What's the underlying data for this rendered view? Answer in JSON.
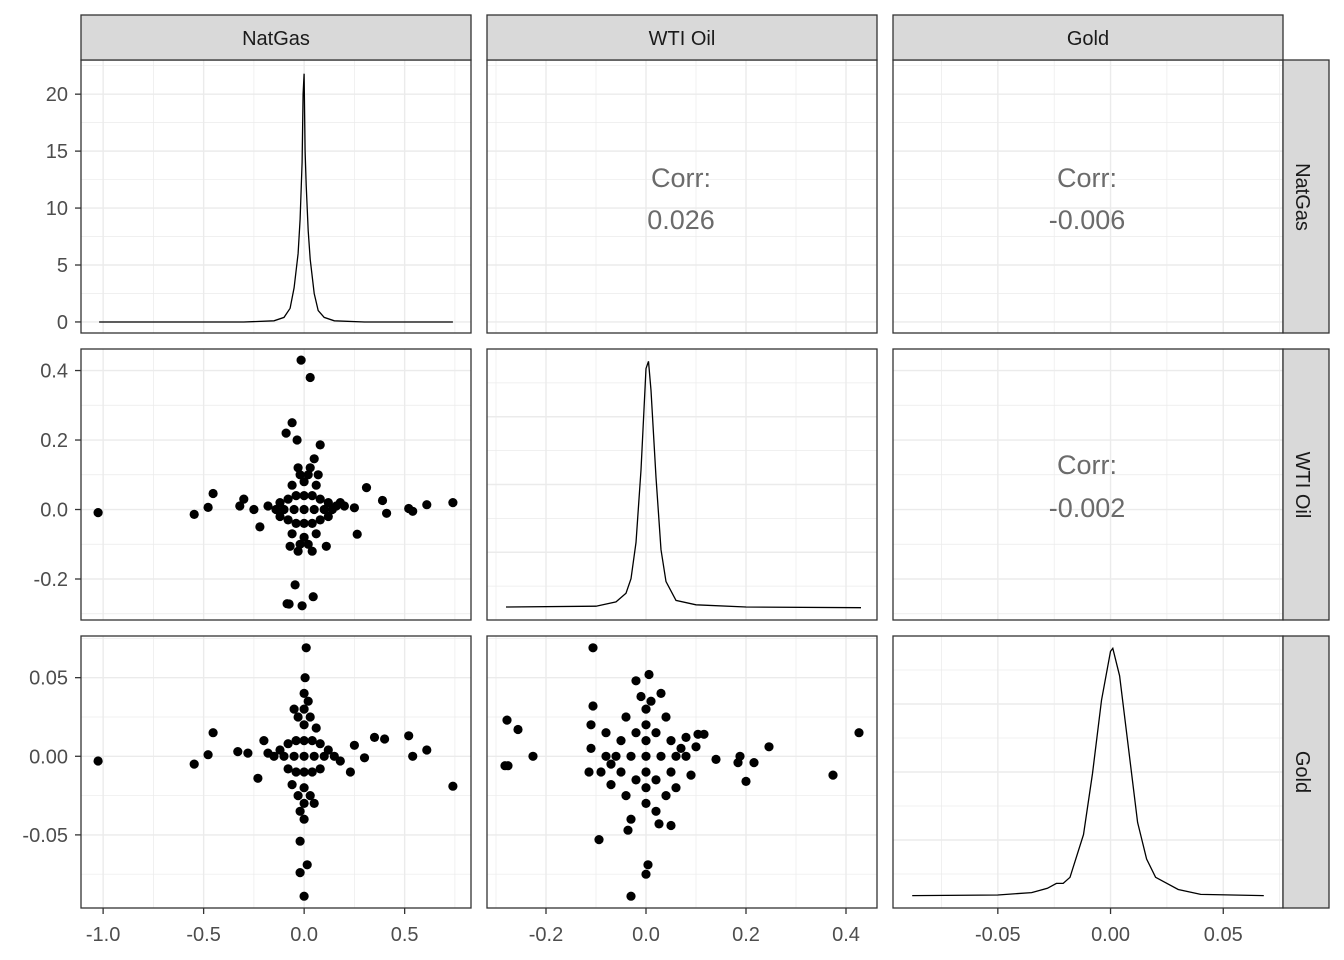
{
  "chart_data": {
    "type": "scatter-matrix",
    "variables": [
      "NatGas",
      "WTI Oil",
      "Gold"
    ],
    "axes": {
      "NatGas": {
        "range": [
          -1.11,
          0.83
        ],
        "ticks": [
          -1.0,
          -0.5,
          0.0,
          0.5
        ],
        "tick_labels": [
          "-1.0",
          "-0.5",
          "0.0",
          "0.5"
        ]
      },
      "WTI Oil": {
        "range": [
          -0.318,
          0.462
        ],
        "ticks": [
          -0.2,
          0.0,
          0.2,
          0.4
        ],
        "tick_labels": [
          "-0.2",
          "0.0",
          "0.2",
          "0.4"
        ]
      },
      "Gold": {
        "range": [
          -0.0965,
          0.0765
        ],
        "ticks": [
          -0.05,
          0.0,
          0.05
        ],
        "tick_labels": [
          "-0.05",
          "0.00",
          "0.05"
        ]
      }
    },
    "row1_density_axis": {
      "range": [
        -0.97,
        23.0
      ],
      "ticks": [
        0,
        5,
        10,
        15,
        20
      ],
      "tick_labels": [
        "0",
        "5",
        "10",
        "15",
        "20"
      ]
    },
    "row_axis_labels": {
      "WTI Oil": [
        "0.4",
        "0.2",
        "0.0",
        "-0.2"
      ],
      "Gold": [
        "0.05",
        "0.00",
        "-0.05"
      ]
    },
    "correlations": [
      {
        "row": "NatGas",
        "col": "WTI Oil",
        "label": "Corr:",
        "value": "0.026"
      },
      {
        "row": "NatGas",
        "col": "Gold",
        "label": "Corr:",
        "value": "-0.006"
      },
      {
        "row": "WTI Oil",
        "col": "Gold",
        "label": "Corr:",
        "value": "-0.002"
      }
    ],
    "densities": {
      "NatGas": [
        [
          -1.02,
          0
        ],
        [
          -0.3,
          0
        ],
        [
          -0.15,
          0.1
        ],
        [
          -0.1,
          0.4
        ],
        [
          -0.07,
          1.2
        ],
        [
          -0.05,
          3
        ],
        [
          -0.03,
          6
        ],
        [
          -0.02,
          9
        ],
        [
          -0.01,
          14
        ],
        [
          -0.005,
          20
        ],
        [
          0,
          21.8
        ],
        [
          0.005,
          15
        ],
        [
          0.01,
          12
        ],
        [
          0.02,
          8
        ],
        [
          0.03,
          5.5
        ],
        [
          0.05,
          2.5
        ],
        [
          0.07,
          1
        ],
        [
          0.1,
          0.4
        ],
        [
          0.15,
          0.1
        ],
        [
          0.3,
          0
        ],
        [
          0.74,
          0
        ]
      ],
      "WTI Oil": [
        [
          -0.28,
          0.05
        ],
        [
          -0.1,
          0.1
        ],
        [
          -0.06,
          0.4
        ],
        [
          -0.04,
          1
        ],
        [
          -0.03,
          2
        ],
        [
          -0.02,
          4.5
        ],
        [
          -0.01,
          9.5
        ],
        [
          0,
          16.5
        ],
        [
          0.005,
          17
        ],
        [
          0.01,
          15
        ],
        [
          0.02,
          9
        ],
        [
          0.03,
          4
        ],
        [
          0.04,
          1.8
        ],
        [
          0.06,
          0.5
        ],
        [
          0.1,
          0.2
        ],
        [
          0.2,
          0.05
        ],
        [
          0.43,
          0
        ]
      ],
      "Gold": [
        [
          -0.088,
          0
        ],
        [
          -0.05,
          0.1
        ],
        [
          -0.035,
          0.5
        ],
        [
          -0.028,
          1.2
        ],
        [
          -0.024,
          2
        ],
        [
          -0.021,
          2
        ],
        [
          -0.018,
          3
        ],
        [
          -0.012,
          10
        ],
        [
          -0.008,
          20
        ],
        [
          -0.004,
          32
        ],
        [
          0,
          40
        ],
        [
          0.001,
          40.5
        ],
        [
          0.004,
          36
        ],
        [
          0.008,
          24
        ],
        [
          0.012,
          12
        ],
        [
          0.016,
          6
        ],
        [
          0.02,
          3
        ],
        [
          0.03,
          1
        ],
        [
          0.04,
          0.2
        ],
        [
          0.068,
          0
        ]
      ]
    },
    "scatter": {
      "NatGas_vs_WTI": [
        [
          -1.025,
          -0.009
        ],
        [
          -0.547,
          -0.014
        ],
        [
          -0.478,
          0.006
        ],
        [
          -0.453,
          0.046
        ],
        [
          -0.015,
          0.43
        ],
        [
          0.03,
          0.38
        ],
        [
          -0.06,
          0.25
        ],
        [
          -0.09,
          0.22
        ],
        [
          -0.035,
          0.2
        ],
        [
          0.08,
          0.186
        ],
        [
          0.05,
          0.146
        ],
        [
          0.31,
          0.063
        ],
        [
          0.39,
          0.026
        ],
        [
          0.41,
          -0.011
        ],
        [
          0.264,
          -0.071
        ],
        [
          0.52,
          0.003
        ],
        [
          0.54,
          -0.005
        ],
        [
          0.61,
          0.014
        ],
        [
          0.74,
          0.02
        ],
        [
          -0.045,
          -0.217
        ],
        [
          -0.085,
          -0.271
        ],
        [
          -0.075,
          -0.272
        ],
        [
          -0.01,
          -0.277
        ],
        [
          0.045,
          -0.251
        ],
        [
          0.11,
          -0.106
        ],
        [
          -0.07,
          -0.106
        ],
        [
          -0.25,
          0
        ],
        [
          -0.3,
          0.03
        ],
        [
          -0.32,
          0.01
        ],
        [
          -0.22,
          -0.05
        ],
        [
          0.2,
          0.01
        ],
        [
          0.25,
          0.005
        ],
        [
          0.16,
          0.01
        ],
        [
          0,
          0
        ],
        [
          0.05,
          0
        ],
        [
          -0.05,
          0
        ],
        [
          0.1,
          0
        ],
        [
          -0.1,
          0
        ],
        [
          0.14,
          0
        ],
        [
          -0.14,
          0
        ],
        [
          0,
          0.04
        ],
        [
          0,
          -0.04
        ],
        [
          0,
          0.08
        ],
        [
          0,
          -0.08
        ],
        [
          0.04,
          0.04
        ],
        [
          -0.04,
          0.04
        ],
        [
          0.04,
          -0.04
        ],
        [
          -0.04,
          -0.04
        ],
        [
          0.08,
          0.03
        ],
        [
          -0.08,
          0.03
        ],
        [
          0.08,
          -0.03
        ],
        [
          -0.08,
          -0.03
        ],
        [
          0.12,
          0.02
        ],
        [
          -0.12,
          0.02
        ],
        [
          0.12,
          -0.02
        ],
        [
          -0.12,
          -0.02
        ],
        [
          0.02,
          0.1
        ],
        [
          -0.02,
          0.1
        ],
        [
          0.02,
          -0.1
        ],
        [
          -0.02,
          -0.1
        ],
        [
          0.06,
          0.07
        ],
        [
          -0.06,
          0.07
        ],
        [
          0.06,
          -0.07
        ],
        [
          -0.06,
          -0.07
        ],
        [
          0.03,
          0.12
        ],
        [
          -0.03,
          0.12
        ],
        [
          0.07,
          0.1
        ],
        [
          0.18,
          0.02
        ],
        [
          -0.18,
          0.01
        ],
        [
          0.04,
          -0.12
        ],
        [
          -0.03,
          -0.12
        ]
      ],
      "NatGas_vs_Gold": [
        [
          -1.025,
          -0.003
        ],
        [
          -0.547,
          -0.005
        ],
        [
          -0.478,
          0.001
        ],
        [
          -0.453,
          0.015
        ],
        [
          0.01,
          0.069
        ],
        [
          0.005,
          0.05
        ],
        [
          0,
          -0.089
        ],
        [
          -0.02,
          -0.074
        ],
        [
          0.015,
          -0.069
        ],
        [
          -0.02,
          -0.054
        ],
        [
          0.35,
          0.012
        ],
        [
          0.4,
          0.011
        ],
        [
          0.52,
          0.013
        ],
        [
          0.61,
          0.004
        ],
        [
          0.54,
          0
        ],
        [
          0.74,
          -0.019
        ],
        [
          0.25,
          0.007
        ],
        [
          0.3,
          -0.001
        ],
        [
          0.23,
          -0.01
        ],
        [
          -0.33,
          0.003
        ],
        [
          -0.23,
          -0.014
        ],
        [
          -0.28,
          0.002
        ],
        [
          -0.2,
          0.01
        ],
        [
          0,
          0
        ],
        [
          0.05,
          0
        ],
        [
          -0.05,
          0
        ],
        [
          0.1,
          0
        ],
        [
          -0.1,
          0
        ],
        [
          0.15,
          0
        ],
        [
          -0.15,
          0
        ],
        [
          0,
          0.01
        ],
        [
          0,
          -0.01
        ],
        [
          0,
          0.02
        ],
        [
          0,
          -0.02
        ],
        [
          0,
          0.03
        ],
        [
          0,
          -0.03
        ],
        [
          0,
          0.04
        ],
        [
          0,
          -0.04
        ],
        [
          0.04,
          0.01
        ],
        [
          -0.04,
          0.01
        ],
        [
          0.04,
          -0.01
        ],
        [
          -0.04,
          -0.01
        ],
        [
          0.08,
          0.008
        ],
        [
          -0.08,
          0.008
        ],
        [
          0.08,
          -0.008
        ],
        [
          -0.08,
          -0.008
        ],
        [
          0.03,
          0.025
        ],
        [
          -0.03,
          0.025
        ],
        [
          0.03,
          -0.025
        ],
        [
          -0.03,
          -0.025
        ],
        [
          0.12,
          0.004
        ],
        [
          -0.12,
          0.004
        ],
        [
          0.02,
          0.035
        ],
        [
          -0.02,
          -0.035
        ],
        [
          0.06,
          0.018
        ],
        [
          -0.06,
          -0.018
        ],
        [
          0.05,
          -0.03
        ],
        [
          -0.05,
          0.03
        ],
        [
          0.18,
          -0.003
        ],
        [
          -0.18,
          0.002
        ]
      ],
      "WTI_vs_Gold": [
        [
          -0.106,
          0.069
        ],
        [
          0.006,
          0.052
        ],
        [
          -0.02,
          0.048
        ],
        [
          -0.278,
          0.023
        ],
        [
          -0.256,
          0.017
        ],
        [
          -0.226,
          0
        ],
        [
          -0.282,
          -0.006
        ],
        [
          -0.276,
          -0.006
        ],
        [
          0.426,
          0.015
        ],
        [
          0.246,
          0.006
        ],
        [
          0.374,
          -0.012
        ],
        [
          0.2,
          -0.016
        ],
        [
          0.216,
          -0.004
        ],
        [
          0.188,
          0
        ],
        [
          0.184,
          -0.004
        ],
        [
          0.14,
          -0.002
        ],
        [
          0.116,
          0.014
        ],
        [
          0.104,
          0.014
        ],
        [
          -0.094,
          -0.053
        ],
        [
          -0.036,
          -0.047
        ],
        [
          0.004,
          -0.069
        ],
        [
          0,
          -0.075
        ],
        [
          -0.03,
          -0.089
        ],
        [
          0.05,
          -0.044
        ],
        [
          0.026,
          -0.043
        ],
        [
          -0.106,
          0.032
        ],
        [
          -0.114,
          -0.01
        ],
        [
          -0.11,
          0.02
        ],
        [
          -0.11,
          0.005
        ],
        [
          0,
          0
        ],
        [
          0.03,
          0
        ],
        [
          -0.03,
          0
        ],
        [
          0.06,
          0
        ],
        [
          -0.06,
          0
        ],
        [
          0.08,
          0
        ],
        [
          -0.08,
          0
        ],
        [
          0,
          0.01
        ],
        [
          0,
          -0.01
        ],
        [
          0,
          0.02
        ],
        [
          0,
          -0.02
        ],
        [
          0,
          0.03
        ],
        [
          0,
          -0.03
        ],
        [
          0.02,
          0.015
        ],
        [
          -0.02,
          0.015
        ],
        [
          0.02,
          -0.015
        ],
        [
          -0.02,
          -0.015
        ],
        [
          0.05,
          0.01
        ],
        [
          -0.05,
          0.01
        ],
        [
          0.05,
          -0.01
        ],
        [
          -0.05,
          -0.01
        ],
        [
          0.04,
          0.025
        ],
        [
          -0.04,
          0.025
        ],
        [
          0.04,
          -0.025
        ],
        [
          -0.04,
          -0.025
        ],
        [
          0.07,
          0.005
        ],
        [
          -0.07,
          -0.005
        ],
        [
          0.01,
          0.035
        ],
        [
          -0.01,
          0.038
        ],
        [
          0.02,
          -0.035
        ],
        [
          0.06,
          -0.02
        ],
        [
          -0.07,
          -0.018
        ],
        [
          0.08,
          0.012
        ],
        [
          -0.08,
          0.015
        ],
        [
          0.1,
          0.006
        ],
        [
          -0.09,
          -0.01
        ],
        [
          0.09,
          -0.012
        ],
        [
          0.03,
          0.04
        ],
        [
          -0.03,
          -0.04
        ]
      ]
    }
  }
}
